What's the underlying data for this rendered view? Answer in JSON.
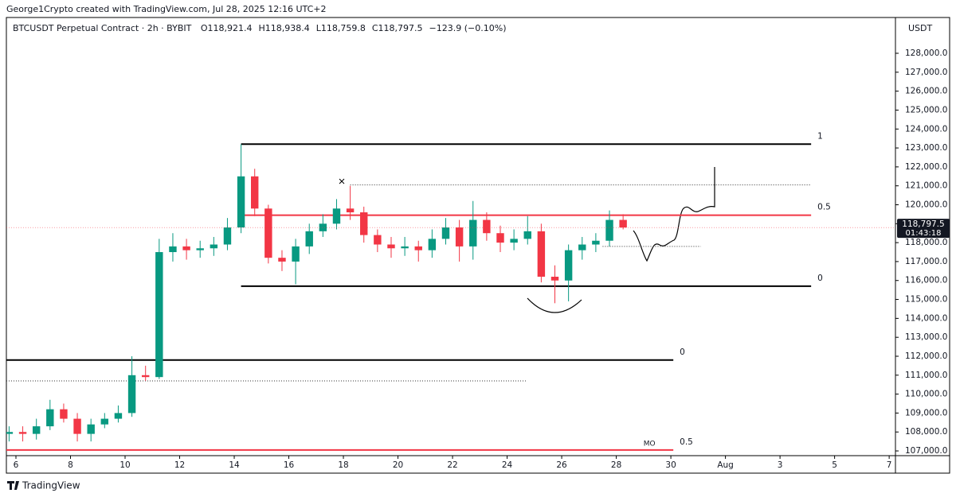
{
  "header": "George1Crypto created with TradingView.com, Jul 28, 2025 12:16 UTC+2",
  "footer": "TradingView",
  "chart_data": {
    "type": "candlestick",
    "symbol": "BTCUSDT Perpetual Contract · 2h · BYBIT",
    "legend_values": [
      "O118,921.4",
      "H118,938.4",
      "L118,759.8",
      "C118,797.5",
      "−123.9 (−0.10%)"
    ],
    "y_axis_unit": "USDT",
    "up_color": "#089981",
    "down_color": "#f23645",
    "x": [
      5.75,
      6.25,
      6.75,
      7.25,
      7.75,
      8.25,
      8.75,
      9.25,
      9.75,
      10.25,
      10.75,
      11.25,
      11.75,
      12.25,
      12.75,
      13.25,
      13.75,
      14.25,
      14.75,
      15.25,
      15.75,
      16.25,
      16.75,
      17.25,
      17.75,
      18.25,
      18.75,
      19.25,
      19.75,
      20.25,
      20.75,
      21.25,
      21.75,
      22.25,
      22.75,
      23.25,
      23.75,
      24.25,
      24.75,
      25.25,
      25.75,
      26.25,
      26.75,
      27.25,
      27.75,
      28.25
    ],
    "open": [
      107900,
      108000,
      107900,
      108300,
      109200,
      108700,
      107900,
      108400,
      108700,
      109000,
      111000,
      110900,
      117500,
      117800,
      117600,
      117700,
      117900,
      118800,
      121500,
      119800,
      117200,
      117000,
      117800,
      118600,
      119000,
      119800,
      119600,
      118400,
      117900,
      117700,
      117800,
      117600,
      118200,
      118800,
      117800,
      119200,
      118500,
      118000,
      118200,
      118600,
      116200,
      116000,
      117600,
      117900,
      118100,
      119200
    ],
    "high": [
      108300,
      108300,
      108700,
      109700,
      109500,
      109000,
      108700,
      109000,
      109400,
      112000,
      111500,
      118200,
      118500,
      118200,
      118100,
      118300,
      119300,
      123200,
      121900,
      120000,
      117600,
      118200,
      119000,
      119500,
      120300,
      121000,
      119900,
      118700,
      118300,
      118300,
      118100,
      118700,
      119300,
      119200,
      120200,
      119600,
      118900,
      118700,
      119400,
      119000,
      116800,
      117900,
      118300,
      118500,
      119700,
      119500
    ],
    "low": [
      107500,
      107500,
      107600,
      108100,
      108500,
      107500,
      107500,
      108200,
      108500,
      108800,
      110700,
      110800,
      117000,
      117100,
      117200,
      117300,
      117600,
      118500,
      119400,
      116900,
      116500,
      115800,
      117400,
      118300,
      118700,
      119200,
      118000,
      117500,
      117200,
      117300,
      117000,
      117200,
      117900,
      117000,
      117100,
      118100,
      117500,
      117600,
      117900,
      115900,
      114800,
      114900,
      117100,
      117500,
      117800,
      118700
    ],
    "close": [
      108000,
      107900,
      108300,
      109200,
      108700,
      107900,
      108400,
      108700,
      109000,
      111000,
      110900,
      117500,
      117800,
      117600,
      117700,
      117900,
      118800,
      121500,
      119800,
      117200,
      117000,
      117800,
      118600,
      119000,
      119800,
      119600,
      118400,
      117900,
      117700,
      117800,
      117600,
      118200,
      118800,
      117800,
      119200,
      118500,
      118000,
      118200,
      118600,
      116200,
      116000,
      117600,
      117900,
      118100,
      119200,
      118797.5
    ],
    "last_price": {
      "value": 118797.5,
      "label": "118,797.5"
    },
    "countdown": "01:43:18",
    "xlim": [
      5.65,
      38.23
    ],
    "xticks": [
      6,
      8,
      10,
      12,
      14,
      16,
      18,
      20,
      22,
      24,
      26,
      28,
      30,
      {
        "value": 32,
        "label": "Aug"
      },
      {
        "value": 34,
        "label": "3"
      },
      {
        "value": 36,
        "label": "5"
      },
      {
        "value": 38,
        "label": "7"
      }
    ],
    "ylim": [
      106750,
      129890
    ],
    "yticks": [
      {
        "value": 107000,
        "label": "107,000.0"
      },
      {
        "value": 108000,
        "label": "108,000.0"
      },
      {
        "value": 109000,
        "label": "109,000.0"
      },
      {
        "value": 110000,
        "label": "110,000.0"
      },
      {
        "value": 111000,
        "label": "111,000.0"
      },
      {
        "value": 112000,
        "label": "112,000.0"
      },
      {
        "value": 113000,
        "label": "113,000.0"
      },
      {
        "value": 114000,
        "label": "114,000.0"
      },
      {
        "value": 115000,
        "label": "115,000.0"
      },
      {
        "value": 116000,
        "label": "116,000.0"
      },
      {
        "value": 117000,
        "label": "117,000.0"
      },
      {
        "value": 118000,
        "label": "118,000.0"
      },
      {
        "value": 119000,
        "label": "119,000.0"
      },
      {
        "value": 120000,
        "label": "120,000.0"
      },
      {
        "value": 121000,
        "label": "121,000.0"
      },
      {
        "value": 122000,
        "label": "122,000.0"
      },
      {
        "value": 123000,
        "label": "123,000.0"
      },
      {
        "value": 124000,
        "label": "124,000.0"
      },
      {
        "value": 125000,
        "label": "125,000.0"
      },
      {
        "value": 126000,
        "label": "126,000.0"
      },
      {
        "value": 127000,
        "label": "127,000.0"
      },
      {
        "value": 128000,
        "label": "128,000.0"
      }
    ],
    "levels": [
      {
        "label": "1",
        "value": 123200,
        "from": 14.25,
        "to": 35.14,
        "color": "#000000"
      },
      {
        "label": "0.5",
        "value": 119450,
        "from": 14.25,
        "to": 35.14,
        "color": "#f23645"
      },
      {
        "label": "0",
        "value": 115700,
        "from": 14.25,
        "to": 35.14,
        "color": "#000000"
      },
      {
        "label": "0",
        "value": 111800,
        "from": 5.65,
        "to": 30.09,
        "color": "#000000"
      },
      {
        "label": "0.5",
        "value": 107050,
        "from": 5.65,
        "to": 30.09,
        "color": "#f23645"
      }
    ],
    "dotted_levels": [
      {
        "value": 121050,
        "from": 18.25,
        "to": 35.14
      },
      {
        "value": 117800,
        "from": 27.5,
        "to": 31.1
      },
      {
        "value": 110700,
        "from": 5.65,
        "to": 24.74
      }
    ],
    "annotation": "MO"
  }
}
